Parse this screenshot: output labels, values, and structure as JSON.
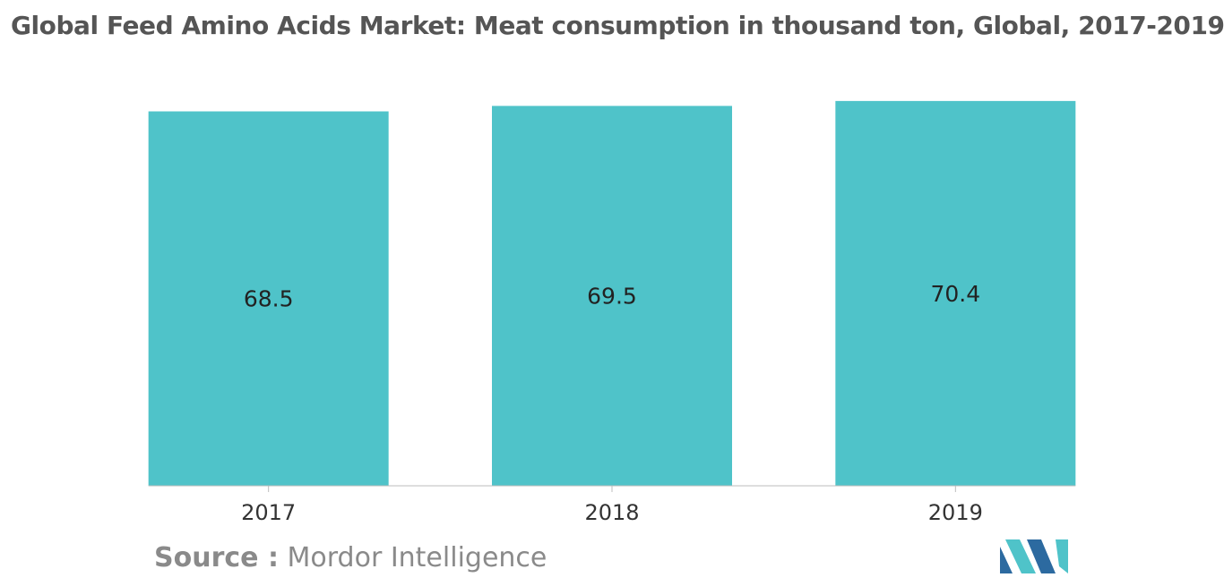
{
  "title": "Global Feed Amino Acids Market: Meat consumption in thousand ton, Global, 2017-2019",
  "source": {
    "prefix": "Source :",
    "name": "Mordor Intelligence"
  },
  "colors": {
    "bar": "#4fc3c9",
    "axis": "#bdbdbd",
    "logo_dark": "#2c6aa0",
    "logo_light": "#4fc3c9"
  },
  "logo": {
    "icon": "mordor-intelligence-logo-icon"
  },
  "chart_data": {
    "type": "bar",
    "title": "Global Feed Amino Acids Market: Meat consumption in thousand ton, Global, 2017-2019",
    "categories": [
      "2017",
      "2018",
      "2019"
    ],
    "values": [
      68.5,
      69.5,
      70.4
    ],
    "value_labels": [
      "68.5",
      "69.5",
      "70.4"
    ],
    "xlabel": "",
    "ylabel": "",
    "ylim": [
      0,
      71.2
    ],
    "grid": false,
    "legend": "none",
    "data_labels": "centered inside bars"
  }
}
